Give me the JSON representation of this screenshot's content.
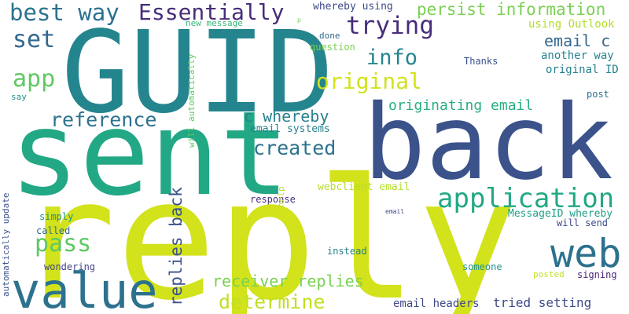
{
  "words": [
    {
      "text": "reply",
      "color": "#d2e21b"
    },
    {
      "text": "GUID",
      "color": "#25858e"
    },
    {
      "text": "sent",
      "color": "#22a884"
    },
    {
      "text": "back",
      "color": "#3b528b"
    },
    {
      "text": "value",
      "color": "#2c728e"
    },
    {
      "text": "web",
      "color": "#2c728e"
    },
    {
      "text": "best way",
      "color": "#2c728e"
    },
    {
      "text": "Essentially",
      "color": "#472d7b"
    },
    {
      "text": "trying",
      "color": "#472d7b"
    },
    {
      "text": "set",
      "color": "#31688e"
    },
    {
      "text": "app",
      "color": "#5ec962"
    },
    {
      "text": "info",
      "color": "#25858e"
    },
    {
      "text": "original",
      "color": "#d2e21b"
    },
    {
      "text": "persist information",
      "color": "#7ad151"
    },
    {
      "text": "email c",
      "color": "#31688e"
    },
    {
      "text": "reference",
      "color": "#2c728e"
    },
    {
      "text": "created",
      "color": "#2c728e"
    },
    {
      "text": "c whereby",
      "color": "#26828e"
    },
    {
      "text": "application",
      "color": "#22a884"
    },
    {
      "text": "pass",
      "color": "#5ec962"
    },
    {
      "text": "determine",
      "color": "#c2df23"
    },
    {
      "text": "receiver replies",
      "color": "#7ad151"
    },
    {
      "text": "replies back",
      "color": "#3b528b"
    },
    {
      "text": "originating email",
      "color": "#29af7f"
    },
    {
      "text": "tried setting",
      "color": "#3e4989"
    },
    {
      "text": "whereby using",
      "color": "#3e4989"
    },
    {
      "text": "using Outlook",
      "color": "#b5de2b"
    },
    {
      "text": "another way",
      "color": "#26828e"
    },
    {
      "text": "original ID",
      "color": "#26828e"
    },
    {
      "text": "Thanks",
      "color": "#3b528b"
    },
    {
      "text": "new message",
      "color": "#35b779"
    },
    {
      "text": "done",
      "color": "#31688e"
    },
    {
      "text": "question",
      "color": "#7ad151"
    },
    {
      "text": "post",
      "color": "#2c728e"
    },
    {
      "text": "say",
      "color": "#21918c"
    },
    {
      "text": "email systems",
      "color": "#26828e"
    },
    {
      "text": "will automatically",
      "color": "#5ec962"
    },
    {
      "text": "webclient email",
      "color": "#b5de2b"
    },
    {
      "text": "response",
      "color": "#472d7b"
    },
    {
      "text": "help",
      "color": "#c2df23"
    },
    {
      "text": "simply",
      "color": "#21918c"
    },
    {
      "text": "called",
      "color": "#31688e"
    },
    {
      "text": "automatically update",
      "color": "#3b528b"
    },
    {
      "text": "wondering",
      "color": "#414487"
    },
    {
      "text": "instead",
      "color": "#26828e"
    },
    {
      "text": "email",
      "color": "#3e4989"
    },
    {
      "text": "MessageID whereby",
      "color": "#1fa187"
    },
    {
      "text": "will send",
      "color": "#3e4989"
    },
    {
      "text": "someone",
      "color": "#21918c"
    },
    {
      "text": "posted",
      "color": "#c2df23"
    },
    {
      "text": "signing",
      "color": "#482475"
    },
    {
      "text": "email headers",
      "color": "#3e4989"
    },
    {
      "text": "p",
      "color": "#7ad151"
    }
  ]
}
